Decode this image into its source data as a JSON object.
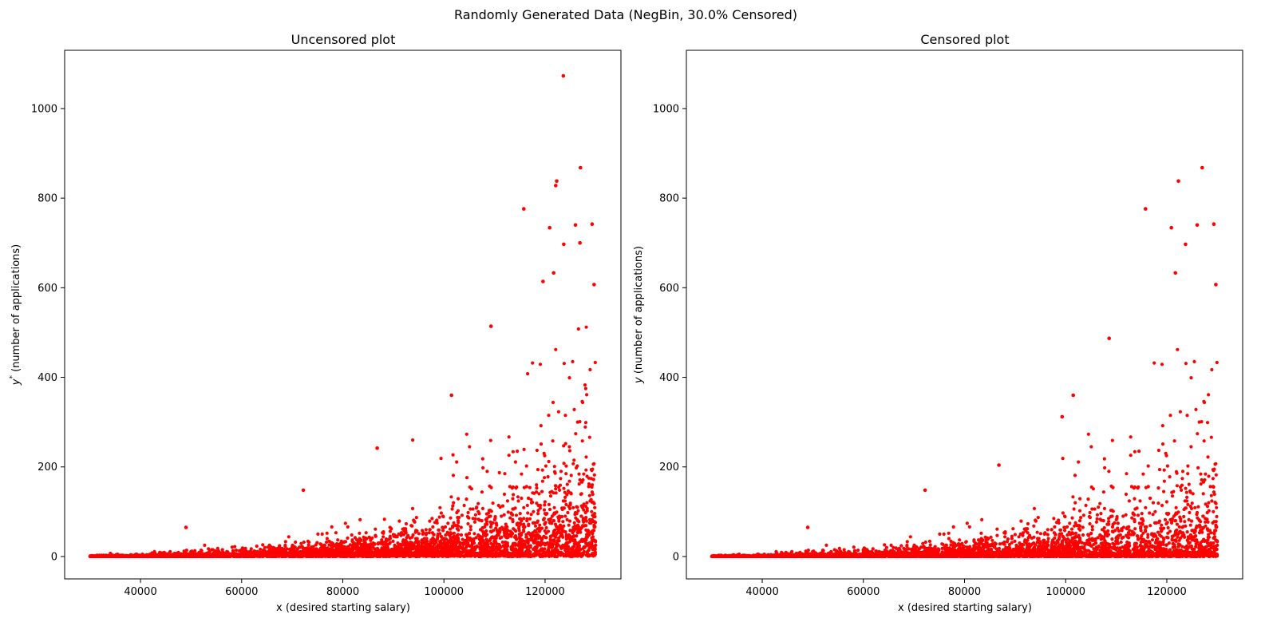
{
  "figure": {
    "suptitle": "Randomly Generated Data (NegBin, 30.0% Censored)"
  },
  "colors": {
    "points": "#ff0000",
    "axes": "#000000",
    "background": "#ffffff"
  },
  "chart_data": [
    {
      "type": "scatter",
      "title": "Uncensored plot",
      "xlabel": "x (desired starting salary)",
      "ylabel_symbol": "y",
      "ylabel_sup": "*",
      "ylabel_rest": " (number of applications)",
      "xlim": [
        25000,
        135000
      ],
      "ylim": [
        -50,
        1130
      ],
      "xticks": [
        40000,
        60000,
        80000,
        100000,
        120000
      ],
      "yticks": [
        0,
        200,
        400,
        600,
        800,
        1000
      ],
      "grid": false,
      "censored": false,
      "notable_points": [
        {
          "x": 123600,
          "y": 1073
        },
        {
          "x": 127000,
          "y": 868
        },
        {
          "x": 122300,
          "y": 838
        },
        {
          "x": 122100,
          "y": 828
        },
        {
          "x": 115800,
          "y": 776
        },
        {
          "x": 126000,
          "y": 740
        },
        {
          "x": 129300,
          "y": 742
        },
        {
          "x": 120900,
          "y": 734
        },
        {
          "x": 126900,
          "y": 700
        },
        {
          "x": 123700,
          "y": 697
        },
        {
          "x": 121700,
          "y": 633
        },
        {
          "x": 119600,
          "y": 614
        },
        {
          "x": 129700,
          "y": 607
        },
        {
          "x": 109300,
          "y": 514
        },
        {
          "x": 101500,
          "y": 360
        },
        {
          "x": 86800,
          "y": 242
        },
        {
          "x": 72200,
          "y": 148
        },
        {
          "x": 49000,
          "y": 65
        }
      ]
    },
    {
      "type": "scatter",
      "title": "Censored plot",
      "xlabel": "x (desired starting salary)",
      "ylabel_symbol": "y",
      "ylabel_sup": "",
      "ylabel_rest": " (number of applications)",
      "xlim": [
        25000,
        135000
      ],
      "ylim": [
        -50,
        1130
      ],
      "xticks": [
        40000,
        60000,
        80000,
        100000,
        120000
      ],
      "yticks": [
        0,
        200,
        400,
        600,
        800,
        1000
      ],
      "grid": false,
      "censored": true,
      "notable_points": [
        {
          "x": 127000,
          "y": 868
        },
        {
          "x": 122300,
          "y": 838
        },
        {
          "x": 115800,
          "y": 776
        },
        {
          "x": 126000,
          "y": 740
        },
        {
          "x": 129300,
          "y": 742
        },
        {
          "x": 120900,
          "y": 734
        },
        {
          "x": 123700,
          "y": 697
        },
        {
          "x": 121700,
          "y": 633
        },
        {
          "x": 129700,
          "y": 607
        },
        {
          "x": 108600,
          "y": 487
        },
        {
          "x": 101500,
          "y": 360
        },
        {
          "x": 99300,
          "y": 312
        },
        {
          "x": 86800,
          "y": 204
        },
        {
          "x": 72200,
          "y": 148
        },
        {
          "x": 49000,
          "y": 65
        }
      ]
    }
  ]
}
